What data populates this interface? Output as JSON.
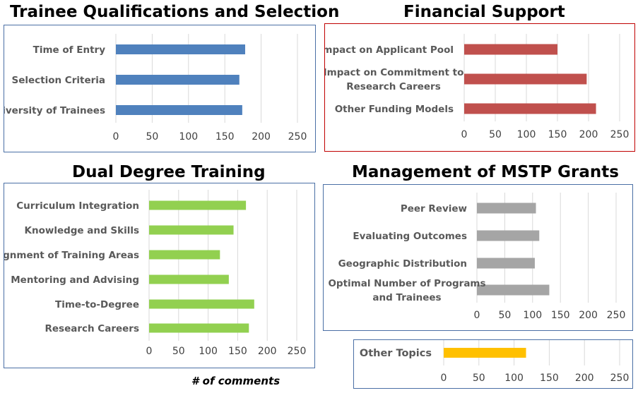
{
  "xlabel": "# of comments",
  "chart_data": [
    {
      "id": "trainee",
      "type": "bar",
      "orientation": "horizontal",
      "title": "Trainee Qualifications and Selection",
      "categories": [
        "Time of Entry",
        "Selection Criteria",
        "Diversity of Trainees"
      ],
      "values": [
        178,
        170,
        174
      ],
      "xlim": [
        0,
        250
      ],
      "ticks": [
        0,
        50,
        100,
        150,
        200,
        250
      ],
      "color": "#4F81BD",
      "border_color": "#4A6FA5"
    },
    {
      "id": "financial",
      "type": "bar",
      "orientation": "horizontal",
      "title": "Financial Support",
      "categories": [
        "Impact on Applicant Pool",
        "Impact on Commitment to\nResearch Careers",
        "Other Funding Models"
      ],
      "values": [
        150,
        197,
        212
      ],
      "xlim": [
        0,
        250
      ],
      "ticks": [
        0,
        50,
        100,
        150,
        200,
        250
      ],
      "color": "#C0504D",
      "border_color": "#C00000"
    },
    {
      "id": "dual",
      "type": "bar",
      "orientation": "horizontal",
      "title": "Dual Degree Training",
      "categories": [
        "Curriculum Integration",
        "Knowledge and Skills",
        "Alignment of Training Areas",
        "Mentoring and Advising",
        "Time-to-Degree",
        "Research Careers"
      ],
      "values": [
        164,
        143,
        120,
        135,
        178,
        169
      ],
      "xlim": [
        0,
        250
      ],
      "ticks": [
        0,
        50,
        100,
        150,
        200,
        250
      ],
      "color": "#92D050",
      "border_color": "#4A6FA5"
    },
    {
      "id": "management",
      "type": "bar",
      "orientation": "horizontal",
      "title": "Management of MSTP Grants",
      "categories": [
        "Peer Review",
        "Evaluating Outcomes",
        "Geographic Distribution",
        "Optimal Number of Programs\nand Trainees"
      ],
      "values": [
        106,
        112,
        104,
        130
      ],
      "xlim": [
        0,
        250
      ],
      "ticks": [
        0,
        50,
        100,
        150,
        200,
        250
      ],
      "color": "#A5A5A5",
      "border_color": "#4A6FA5"
    },
    {
      "id": "other",
      "type": "bar",
      "orientation": "horizontal",
      "title": "",
      "categories": [
        "Other Topics"
      ],
      "values": [
        117
      ],
      "xlim": [
        0,
        250
      ],
      "ticks": [
        0,
        50,
        100,
        150,
        200,
        250
      ],
      "color": "#FFC000",
      "border_color": "#4A6FA5"
    }
  ]
}
